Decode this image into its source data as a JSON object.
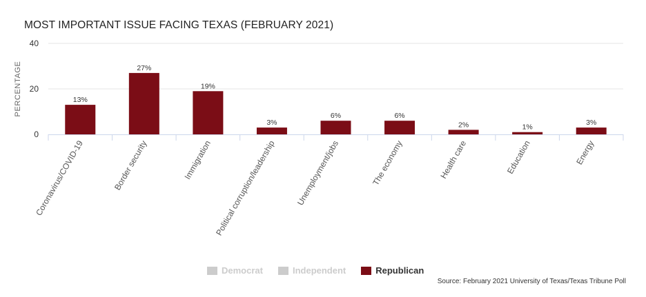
{
  "chart_data": {
    "type": "bar",
    "title": "MOST IMPORTANT ISSUE FACING TEXAS (FEBRUARY 2021)",
    "ylabel": "PERCENTAGE",
    "xlabel": "",
    "ylim": [
      0,
      40
    ],
    "yticks": [
      0,
      20,
      40
    ],
    "grid": true,
    "categories": [
      "Coronavirus/COVID-19",
      "Border security",
      "Immigration",
      "Political corruption/leadership",
      "Unemployment/jobs",
      "The economy",
      "Health care",
      "Education",
      "Energy"
    ],
    "series": [
      {
        "name": "Republican",
        "color": "#7b0d16",
        "visible": true,
        "values": [
          13,
          27,
          19,
          3,
          6,
          6,
          2,
          1,
          3
        ],
        "labels": [
          "13%",
          "27%",
          "19%",
          "3%",
          "6%",
          "6%",
          "2%",
          "1%",
          "3%"
        ]
      }
    ],
    "legend": {
      "placement": "bottom-center",
      "items": [
        {
          "label": "Democrat",
          "color": "#cccccc",
          "active": false
        },
        {
          "label": "Independent",
          "color": "#cccccc",
          "active": false
        },
        {
          "label": "Republican",
          "color": "#7b0d16",
          "active": true
        }
      ]
    },
    "source": "Source: February 2021 University of Texas/Texas Tribune Poll"
  }
}
